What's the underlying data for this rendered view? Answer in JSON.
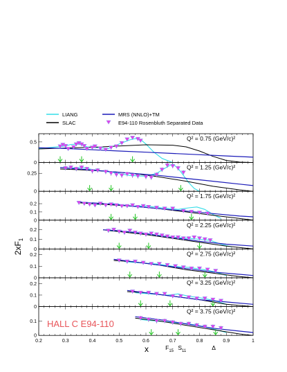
{
  "chart_data": {
    "type": "line",
    "legend": {
      "placement": "top",
      "entries": [
        {
          "label": "LIANG",
          "color": "#33dde8",
          "kind": "line"
        },
        {
          "label": "SLAC",
          "color": "#000000",
          "kind": "line"
        },
        {
          "label": "MRS (NNLO)+TM",
          "color": "#1a1ab8",
          "kind": "line"
        },
        {
          "label": "E94-110 Rosenbluth Separated Data",
          "color": "#e83ce8",
          "kind": "marker"
        }
      ]
    },
    "ylabel": "2xF",
    "ylabel_sub": "1",
    "xlabel": "x",
    "xlim": [
      0.2,
      1.0
    ],
    "x_ticks": [
      "0.2",
      "0.3",
      "0.4",
      "0.5",
      "0.6",
      "0.7",
      "0.8",
      "0.9",
      "1"
    ],
    "annotation": "HALL C  E94-110",
    "resonance_labels": [
      {
        "text": "F",
        "sub": "15",
        "x": 0.688
      },
      {
        "text": "S",
        "sub": "11",
        "x": 0.735
      },
      {
        "text": "Δ",
        "sub": "",
        "x": 0.853
      }
    ],
    "panels": [
      {
        "q2_label": "Q² = 0.75 (GeV/c)²",
        "ylim": [
          0,
          0.7
        ],
        "y_ticks": [
          0,
          0.5
        ],
        "arrows": [
          0.28,
          0.36,
          0.55
        ],
        "data_x": [
          0.28,
          0.29,
          0.3,
          0.31,
          0.33,
          0.34,
          0.35,
          0.36,
          0.37,
          0.38,
          0.4,
          0.41,
          0.43,
          0.45,
          0.47,
          0.49,
          0.51,
          0.53,
          0.55,
          0.57,
          0.58
        ],
        "data_y": [
          0.39,
          0.43,
          0.4,
          0.33,
          0.37,
          0.44,
          0.47,
          0.44,
          0.4,
          0.33,
          0.36,
          0.39,
          0.34,
          0.31,
          0.36,
          0.39,
          0.47,
          0.56,
          0.6,
          0.57,
          0.53
        ],
        "data_err": [
          0.04,
          0.04,
          0.04,
          0.04,
          0.04,
          0.04,
          0.04,
          0.04,
          0.04,
          0.04,
          0.04,
          0.04,
          0.04,
          0.04,
          0.04,
          0.04,
          0.04,
          0.04,
          0.04,
          0.04,
          0.04
        ],
        "slac_x": [
          0.2,
          0.3,
          0.4,
          0.5,
          0.6,
          0.7,
          0.75,
          0.8,
          0.85,
          0.9,
          0.95,
          1.0
        ],
        "slac_y": [
          0.33,
          0.35,
          0.37,
          0.4,
          0.43,
          0.42,
          0.38,
          0.28,
          0.15,
          0.05,
          0.01,
          0.0
        ],
        "mrs_x": [
          0.2,
          0.3,
          0.4,
          0.5,
          0.6,
          0.7,
          0.8,
          0.9,
          1.0
        ],
        "mrs_y": [
          0.36,
          0.34,
          0.31,
          0.28,
          0.25,
          0.22,
          0.19,
          0.16,
          0.13
        ],
        "liang_x": [
          0.2,
          0.3,
          0.32,
          0.35,
          0.38,
          0.42,
          0.46,
          0.5,
          0.54,
          0.56,
          0.58,
          0.6,
          0.63,
          0.66,
          0.7
        ],
        "liang_y": [
          0.34,
          0.4,
          0.44,
          0.45,
          0.38,
          0.36,
          0.34,
          0.45,
          0.55,
          0.58,
          0.56,
          0.45,
          0.25,
          0.1,
          0.0
        ]
      },
      {
        "q2_label": "Q² = 1.25 (GeV/c)²",
        "ylim": [
          0,
          0.4
        ],
        "y_ticks": [
          0,
          0.25
        ],
        "arrows": [
          0.39,
          0.47,
          0.73
        ],
        "data_x": [
          0.3,
          0.32,
          0.34,
          0.36,
          0.38,
          0.4,
          0.42,
          0.45,
          0.47,
          0.49,
          0.51,
          0.53,
          0.55,
          0.57,
          0.6,
          0.62,
          0.64,
          0.66,
          0.68,
          0.7,
          0.72,
          0.74
        ],
        "data_y": [
          0.32,
          0.33,
          0.31,
          0.33,
          0.31,
          0.28,
          0.29,
          0.27,
          0.25,
          0.23,
          0.22,
          0.24,
          0.22,
          0.21,
          0.2,
          0.19,
          0.23,
          0.3,
          0.36,
          0.35,
          0.32,
          0.26
        ],
        "data_err": [
          0.03,
          0.03,
          0.03,
          0.03,
          0.03,
          0.03,
          0.03,
          0.03,
          0.03,
          0.03,
          0.03,
          0.03,
          0.03,
          0.03,
          0.03,
          0.03,
          0.03,
          0.03,
          0.03,
          0.03,
          0.03,
          0.03
        ],
        "slac_x": [
          0.28,
          0.35,
          0.45,
          0.55,
          0.65,
          0.75,
          0.85,
          0.95,
          1.0
        ],
        "slac_y": [
          0.31,
          0.3,
          0.28,
          0.25,
          0.2,
          0.14,
          0.07,
          0.02,
          0.0
        ],
        "mrs_x": [
          0.28,
          0.35,
          0.45,
          0.55,
          0.65,
          0.75,
          0.85,
          0.95,
          1.0
        ],
        "mrs_y": [
          0.33,
          0.31,
          0.28,
          0.25,
          0.22,
          0.18,
          0.14,
          0.1,
          0.08
        ],
        "liang_x": [
          0.3,
          0.36,
          0.42,
          0.48,
          0.54,
          0.6,
          0.64,
          0.68,
          0.7,
          0.72,
          0.74,
          0.76,
          0.78,
          0.8
        ],
        "liang_y": [
          0.32,
          0.33,
          0.29,
          0.26,
          0.22,
          0.21,
          0.25,
          0.34,
          0.38,
          0.32,
          0.22,
          0.12,
          0.04,
          0.0
        ]
      },
      {
        "q2_label": "Q² = 1.75 (GeV/c)²",
        "ylim": [
          0,
          0.35
        ],
        "y_ticks": [
          0,
          0.1,
          0.2
        ],
        "arrows": [
          0.47,
          0.56,
          0.77
        ],
        "data_x": [
          0.35,
          0.37,
          0.39,
          0.41,
          0.43,
          0.45,
          0.47,
          0.49,
          0.51,
          0.53,
          0.55,
          0.57,
          0.59,
          0.61,
          0.64,
          0.67,
          0.7,
          0.74,
          0.77,
          0.8,
          0.83
        ],
        "data_y": [
          0.21,
          0.2,
          0.19,
          0.18,
          0.2,
          0.18,
          0.19,
          0.18,
          0.17,
          0.17,
          0.18,
          0.16,
          0.17,
          0.16,
          0.15,
          0.14,
          0.14,
          0.11,
          0.1,
          0.09,
          0.08
        ],
        "data_err": [
          0.02,
          0.02,
          0.02,
          0.02,
          0.02,
          0.02,
          0.02,
          0.02,
          0.02,
          0.02,
          0.02,
          0.02,
          0.02,
          0.02,
          0.02,
          0.02,
          0.02,
          0.02,
          0.02,
          0.02,
          0.02
        ],
        "slac_x": [
          0.35,
          0.45,
          0.55,
          0.65,
          0.75,
          0.85,
          0.95,
          1.0
        ],
        "slac_y": [
          0.21,
          0.19,
          0.17,
          0.14,
          0.1,
          0.06,
          0.02,
          0.0
        ],
        "mrs_x": [
          0.35,
          0.45,
          0.55,
          0.65,
          0.75,
          0.85,
          0.95,
          1.0
        ],
        "mrs_y": [
          0.22,
          0.2,
          0.17,
          0.14,
          0.11,
          0.08,
          0.05,
          0.04
        ],
        "liang_x": [
          0.36,
          0.42,
          0.48,
          0.54,
          0.6,
          0.66,
          0.72,
          0.76,
          0.79,
          0.82,
          0.85,
          0.88
        ],
        "liang_y": [
          0.21,
          0.19,
          0.2,
          0.17,
          0.17,
          0.15,
          0.13,
          0.15,
          0.16,
          0.13,
          0.07,
          0.02
        ]
      },
      {
        "q2_label": "Q² = 2.25 (GeV/c)²",
        "ylim": [
          0,
          0.3
        ],
        "y_ticks": [
          0,
          0.1,
          0.2
        ],
        "arrows": [
          0.5,
          0.61,
          0.8
        ],
        "data_x": [
          0.46,
          0.48,
          0.5,
          0.52,
          0.54,
          0.56,
          0.58,
          0.6,
          0.62,
          0.64,
          0.66,
          0.68,
          0.7,
          0.72,
          0.74,
          0.76,
          0.78,
          0.8,
          0.82,
          0.84
        ],
        "data_y": [
          0.19,
          0.2,
          0.18,
          0.17,
          0.19,
          0.17,
          0.16,
          0.15,
          0.16,
          0.15,
          0.14,
          0.13,
          0.12,
          0.12,
          0.11,
          0.11,
          0.12,
          0.11,
          0.1,
          0.09
        ],
        "data_err": [
          0.02,
          0.02,
          0.02,
          0.02,
          0.02,
          0.02,
          0.02,
          0.02,
          0.02,
          0.02,
          0.02,
          0.02,
          0.02,
          0.02,
          0.02,
          0.02,
          0.02,
          0.02,
          0.02,
          0.02
        ],
        "slac_x": [
          0.44,
          0.5,
          0.6,
          0.7,
          0.8,
          0.9,
          1.0
        ],
        "slac_y": [
          0.2,
          0.18,
          0.15,
          0.11,
          0.07,
          0.03,
          0.0
        ],
        "mrs_x": [
          0.44,
          0.5,
          0.6,
          0.7,
          0.8,
          0.9,
          1.0
        ],
        "mrs_y": [
          0.2,
          0.19,
          0.16,
          0.12,
          0.08,
          0.05,
          0.03
        ],
        "liang_x": [
          0.46,
          0.52,
          0.58,
          0.64,
          0.7,
          0.76,
          0.8,
          0.84,
          0.88,
          0.92
        ],
        "liang_y": [
          0.19,
          0.18,
          0.16,
          0.14,
          0.12,
          0.11,
          0.1,
          0.09,
          0.05,
          0.02
        ]
      },
      {
        "q2_label": "Q² = 2.75 (GeV/c)²",
        "ylim": [
          0,
          0.25
        ],
        "y_ticks": [
          0,
          0.1,
          0.2
        ],
        "arrows": [
          0.54,
          0.65,
          0.82
        ],
        "data_x": [
          0.5,
          0.53,
          0.56,
          0.59,
          0.62,
          0.65,
          0.68,
          0.71,
          0.74,
          0.77,
          0.8,
          0.83,
          0.86
        ],
        "data_y": [
          0.15,
          0.14,
          0.14,
          0.13,
          0.12,
          0.12,
          0.11,
          0.1,
          0.09,
          0.08,
          0.08,
          0.07,
          0.06
        ],
        "data_err": [
          0.015,
          0.015,
          0.015,
          0.015,
          0.015,
          0.015,
          0.015,
          0.015,
          0.015,
          0.015,
          0.015,
          0.015,
          0.015
        ],
        "slac_x": [
          0.48,
          0.55,
          0.65,
          0.75,
          0.85,
          0.95,
          1.0
        ],
        "slac_y": [
          0.15,
          0.14,
          0.11,
          0.07,
          0.04,
          0.01,
          0.0
        ],
        "mrs_x": [
          0.48,
          0.55,
          0.65,
          0.75,
          0.85,
          0.95,
          1.0
        ],
        "mrs_y": [
          0.16,
          0.14,
          0.11,
          0.08,
          0.05,
          0.03,
          0.02
        ],
        "liang_x": [
          0.52,
          0.58,
          0.64,
          0.7,
          0.76,
          0.82,
          0.86,
          0.9
        ],
        "liang_y": [
          0.14,
          0.13,
          0.12,
          0.1,
          0.09,
          0.07,
          0.05,
          0.02
        ]
      },
      {
        "q2_label": "Q² = 3.25 (GeV/c)²",
        "ylim": [
          0,
          0.25
        ],
        "y_ticks": [
          0,
          0.1,
          0.2
        ],
        "arrows": [
          0.58,
          0.69,
          0.85
        ],
        "data_x": [
          0.55,
          0.58,
          0.61,
          0.64,
          0.67,
          0.7,
          0.73,
          0.76,
          0.79,
          0.82,
          0.85,
          0.88
        ],
        "data_y": [
          0.13,
          0.12,
          0.12,
          0.11,
          0.11,
          0.09,
          0.09,
          0.08,
          0.07,
          0.07,
          0.06,
          0.05
        ],
        "data_err": [
          0.015,
          0.015,
          0.015,
          0.015,
          0.015,
          0.015,
          0.015,
          0.015,
          0.015,
          0.015,
          0.015,
          0.015
        ],
        "slac_x": [
          0.53,
          0.6,
          0.7,
          0.8,
          0.9,
          1.0
        ],
        "slac_y": [
          0.13,
          0.12,
          0.09,
          0.06,
          0.02,
          0.0
        ],
        "mrs_x": [
          0.53,
          0.6,
          0.7,
          0.8,
          0.9,
          1.0
        ],
        "mrs_y": [
          0.14,
          0.12,
          0.09,
          0.06,
          0.04,
          0.02
        ],
        "liang_x": [
          0.56,
          0.62,
          0.68,
          0.72,
          0.76,
          0.82,
          0.86,
          0.9
        ],
        "liang_y": [
          0.12,
          0.11,
          0.1,
          0.11,
          0.09,
          0.07,
          0.05,
          0.02
        ]
      },
      {
        "q2_label": "Q² = 3.75 (GeV/c)²",
        "ylim": [
          0,
          0.2
        ],
        "y_ticks": [
          0,
          0.1
        ],
        "arrows": [
          0.62,
          0.72,
          0.86
        ],
        "data_x": [
          0.58,
          0.61,
          0.64,
          0.67,
          0.7,
          0.73,
          0.76,
          0.79,
          0.82,
          0.85,
          0.88
        ],
        "data_y": [
          0.12,
          0.11,
          0.1,
          0.1,
          0.09,
          0.08,
          0.08,
          0.07,
          0.06,
          0.06,
          0.05
        ],
        "data_err": [
          0.015,
          0.015,
          0.015,
          0.015,
          0.015,
          0.015,
          0.015,
          0.015,
          0.015,
          0.015,
          0.015
        ],
        "slac_x": [
          0.56,
          0.65,
          0.75,
          0.85,
          0.95,
          1.0
        ],
        "slac_y": [
          0.12,
          0.1,
          0.07,
          0.04,
          0.01,
          0.0
        ],
        "mrs_x": [
          0.56,
          0.65,
          0.75,
          0.85,
          0.95,
          1.0
        ],
        "mrs_y": [
          0.13,
          0.11,
          0.08,
          0.05,
          0.03,
          0.02
        ],
        "liang_x": [
          0.58,
          0.64,
          0.7,
          0.76,
          0.82,
          0.86,
          0.9
        ],
        "liang_y": [
          0.11,
          0.1,
          0.09,
          0.08,
          0.06,
          0.04,
          0.02
        ]
      }
    ]
  }
}
